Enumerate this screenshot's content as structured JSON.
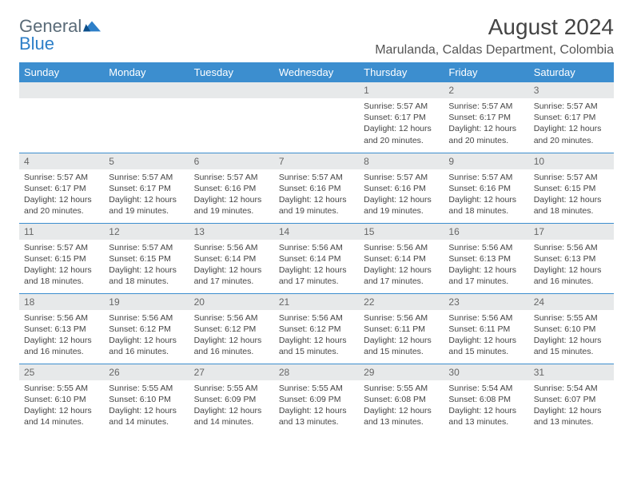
{
  "brand": {
    "general": "General",
    "blue": "Blue"
  },
  "title": "August 2024",
  "location": "Marulanda, Caldas Department, Colombia",
  "colors": {
    "header_bg": "#3c8ecf",
    "header_text": "#ffffff",
    "daynum_bg": "#e7e9ea",
    "rule": "#3c8ecf",
    "body_text": "#444444",
    "logo_gray": "#5a6b78",
    "logo_blue": "#2d7fc8",
    "page_bg": "#ffffff"
  },
  "typography": {
    "month_title_size_pt": 21,
    "location_size_pt": 12,
    "dayhead_size_pt": 10,
    "daynum_size_pt": 9,
    "body_size_pt": 8
  },
  "day_headers": [
    "Sunday",
    "Monday",
    "Tuesday",
    "Wednesday",
    "Thursday",
    "Friday",
    "Saturday"
  ],
  "weeks": [
    [
      null,
      null,
      null,
      null,
      {
        "n": "1",
        "sunrise": "5:57 AM",
        "sunset": "6:17 PM",
        "daylight": "12 hours and 20 minutes."
      },
      {
        "n": "2",
        "sunrise": "5:57 AM",
        "sunset": "6:17 PM",
        "daylight": "12 hours and 20 minutes."
      },
      {
        "n": "3",
        "sunrise": "5:57 AM",
        "sunset": "6:17 PM",
        "daylight": "12 hours and 20 minutes."
      }
    ],
    [
      {
        "n": "4",
        "sunrise": "5:57 AM",
        "sunset": "6:17 PM",
        "daylight": "12 hours and 20 minutes."
      },
      {
        "n": "5",
        "sunrise": "5:57 AM",
        "sunset": "6:17 PM",
        "daylight": "12 hours and 19 minutes."
      },
      {
        "n": "6",
        "sunrise": "5:57 AM",
        "sunset": "6:16 PM",
        "daylight": "12 hours and 19 minutes."
      },
      {
        "n": "7",
        "sunrise": "5:57 AM",
        "sunset": "6:16 PM",
        "daylight": "12 hours and 19 minutes."
      },
      {
        "n": "8",
        "sunrise": "5:57 AM",
        "sunset": "6:16 PM",
        "daylight": "12 hours and 19 minutes."
      },
      {
        "n": "9",
        "sunrise": "5:57 AM",
        "sunset": "6:16 PM",
        "daylight": "12 hours and 18 minutes."
      },
      {
        "n": "10",
        "sunrise": "5:57 AM",
        "sunset": "6:15 PM",
        "daylight": "12 hours and 18 minutes."
      }
    ],
    [
      {
        "n": "11",
        "sunrise": "5:57 AM",
        "sunset": "6:15 PM",
        "daylight": "12 hours and 18 minutes."
      },
      {
        "n": "12",
        "sunrise": "5:57 AM",
        "sunset": "6:15 PM",
        "daylight": "12 hours and 18 minutes."
      },
      {
        "n": "13",
        "sunrise": "5:56 AM",
        "sunset": "6:14 PM",
        "daylight": "12 hours and 17 minutes."
      },
      {
        "n": "14",
        "sunrise": "5:56 AM",
        "sunset": "6:14 PM",
        "daylight": "12 hours and 17 minutes."
      },
      {
        "n": "15",
        "sunrise": "5:56 AM",
        "sunset": "6:14 PM",
        "daylight": "12 hours and 17 minutes."
      },
      {
        "n": "16",
        "sunrise": "5:56 AM",
        "sunset": "6:13 PM",
        "daylight": "12 hours and 17 minutes."
      },
      {
        "n": "17",
        "sunrise": "5:56 AM",
        "sunset": "6:13 PM",
        "daylight": "12 hours and 16 minutes."
      }
    ],
    [
      {
        "n": "18",
        "sunrise": "5:56 AM",
        "sunset": "6:13 PM",
        "daylight": "12 hours and 16 minutes."
      },
      {
        "n": "19",
        "sunrise": "5:56 AM",
        "sunset": "6:12 PM",
        "daylight": "12 hours and 16 minutes."
      },
      {
        "n": "20",
        "sunrise": "5:56 AM",
        "sunset": "6:12 PM",
        "daylight": "12 hours and 16 minutes."
      },
      {
        "n": "21",
        "sunrise": "5:56 AM",
        "sunset": "6:12 PM",
        "daylight": "12 hours and 15 minutes."
      },
      {
        "n": "22",
        "sunrise": "5:56 AM",
        "sunset": "6:11 PM",
        "daylight": "12 hours and 15 minutes."
      },
      {
        "n": "23",
        "sunrise": "5:56 AM",
        "sunset": "6:11 PM",
        "daylight": "12 hours and 15 minutes."
      },
      {
        "n": "24",
        "sunrise": "5:55 AM",
        "sunset": "6:10 PM",
        "daylight": "12 hours and 15 minutes."
      }
    ],
    [
      {
        "n": "25",
        "sunrise": "5:55 AM",
        "sunset": "6:10 PM",
        "daylight": "12 hours and 14 minutes."
      },
      {
        "n": "26",
        "sunrise": "5:55 AM",
        "sunset": "6:10 PM",
        "daylight": "12 hours and 14 minutes."
      },
      {
        "n": "27",
        "sunrise": "5:55 AM",
        "sunset": "6:09 PM",
        "daylight": "12 hours and 14 minutes."
      },
      {
        "n": "28",
        "sunrise": "5:55 AM",
        "sunset": "6:09 PM",
        "daylight": "12 hours and 13 minutes."
      },
      {
        "n": "29",
        "sunrise": "5:55 AM",
        "sunset": "6:08 PM",
        "daylight": "12 hours and 13 minutes."
      },
      {
        "n": "30",
        "sunrise": "5:54 AM",
        "sunset": "6:08 PM",
        "daylight": "12 hours and 13 minutes."
      },
      {
        "n": "31",
        "sunrise": "5:54 AM",
        "sunset": "6:07 PM",
        "daylight": "12 hours and 13 minutes."
      }
    ]
  ],
  "labels": {
    "sunrise": "Sunrise:",
    "sunset": "Sunset:",
    "daylight": "Daylight:"
  }
}
